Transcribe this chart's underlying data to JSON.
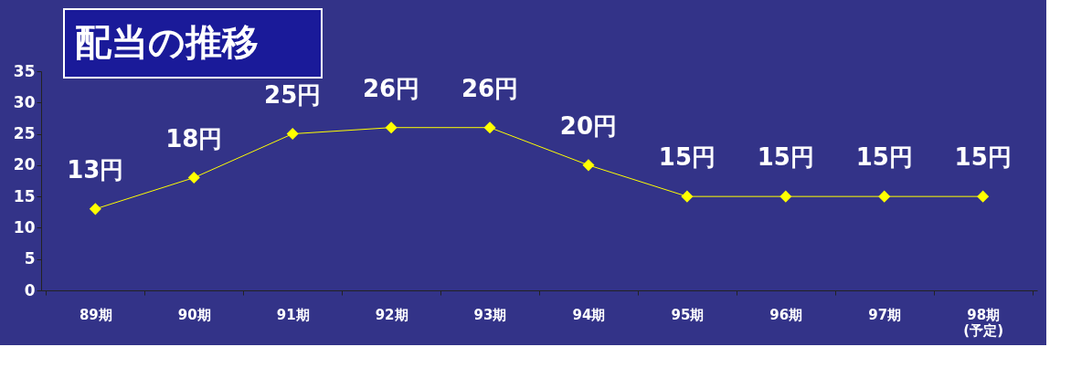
{
  "chart_data": {
    "type": "line",
    "title": "配当の推移",
    "categories": [
      "89期",
      "90期",
      "91期",
      "92期",
      "93期",
      "94期",
      "95期",
      "96期",
      "97期",
      "98期\n(予定)"
    ],
    "series": [
      {
        "color": "#ffff00",
        "values": [
          13,
          18,
          25,
          26,
          26,
          20,
          15,
          15,
          15,
          15
        ]
      }
    ],
    "value_labels": [
      "13円",
      "18円",
      "25円",
      "26円",
      "26円",
      "20円",
      "15円",
      "15円",
      "15円",
      "15円"
    ],
    "ylim": [
      0,
      35
    ],
    "yticks": [
      0,
      5,
      10,
      15,
      20,
      25,
      30,
      35
    ],
    "grid": false,
    "marker": "diamond",
    "line_style": "solid"
  }
}
